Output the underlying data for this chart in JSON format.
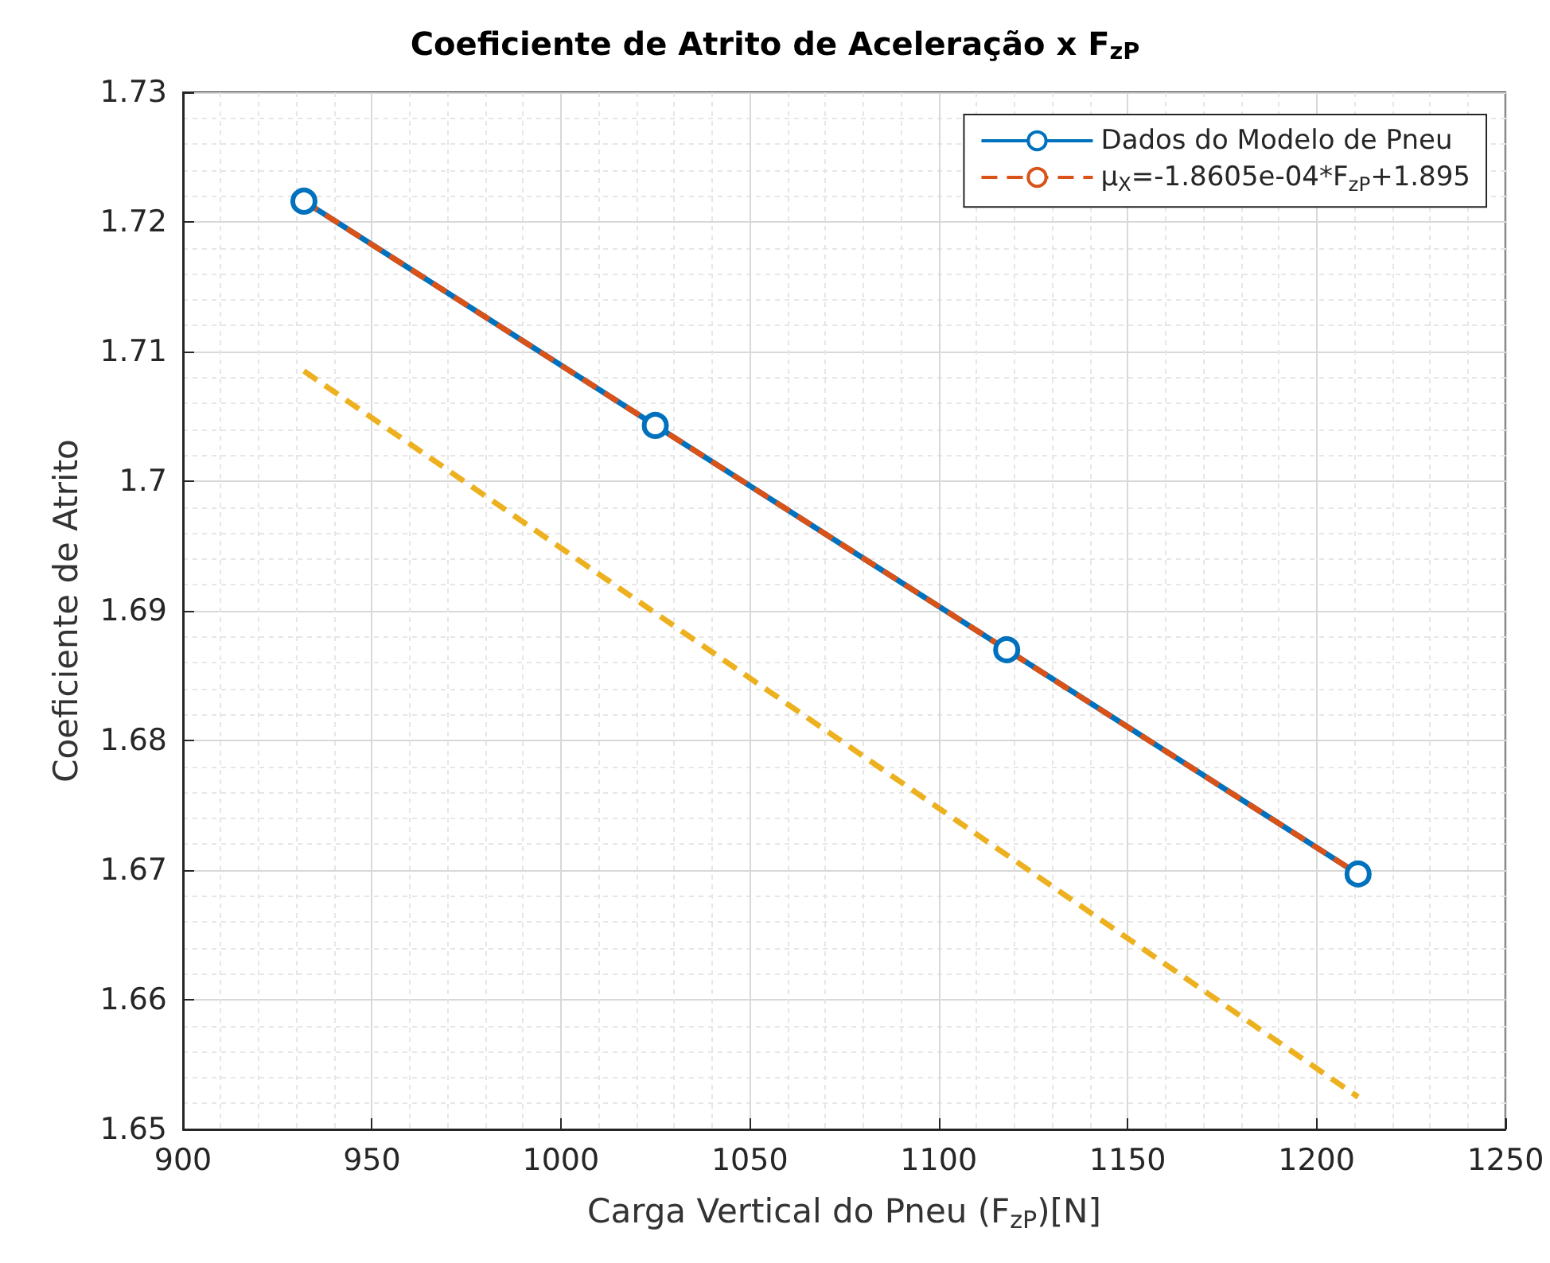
{
  "chart_data": {
    "type": "line",
    "title": "Coeficiente de Atrito de Aceleração x F$_{zP}$",
    "xlabel": "Carga Vertical do Pneu (F$_{zP}$)[N]",
    "ylabel": "Coeficiente de Atrito",
    "xlim": [
      900,
      1250
    ],
    "xticks": [
      900,
      950,
      1000,
      1050,
      1100,
      1150,
      1200,
      1250
    ],
    "ylim": [
      1.65,
      1.73
    ],
    "yticks": [
      1.65,
      1.66,
      1.67,
      1.68,
      1.69,
      1.7,
      1.71,
      1.72,
      1.73
    ],
    "grid": true,
    "legend": "top right",
    "series": [
      {
        "name": "Dados do Modelo de Pneu",
        "color": "#0072bd",
        "x": [
          932,
          1025,
          1118,
          1211
        ],
        "values": [
          1.7216,
          1.7043,
          1.687,
          1.6697
        ],
        "marker": "circle",
        "line_style": "solid"
      },
      {
        "name": "μ$_{X}$=-1.8605e-04*F$_{zP}$+1.895",
        "color": "#d95319",
        "x": [
          932,
          1211
        ],
        "values": [
          1.7216,
          1.6697
        ],
        "marker": "none",
        "line_style": "dashed"
      },
      {
        "color": "#edb120",
        "x": [
          932,
          1211
        ],
        "values": [
          1.7085,
          1.6525
        ],
        "marker": "none",
        "line_style": "dashed"
      }
    ]
  }
}
